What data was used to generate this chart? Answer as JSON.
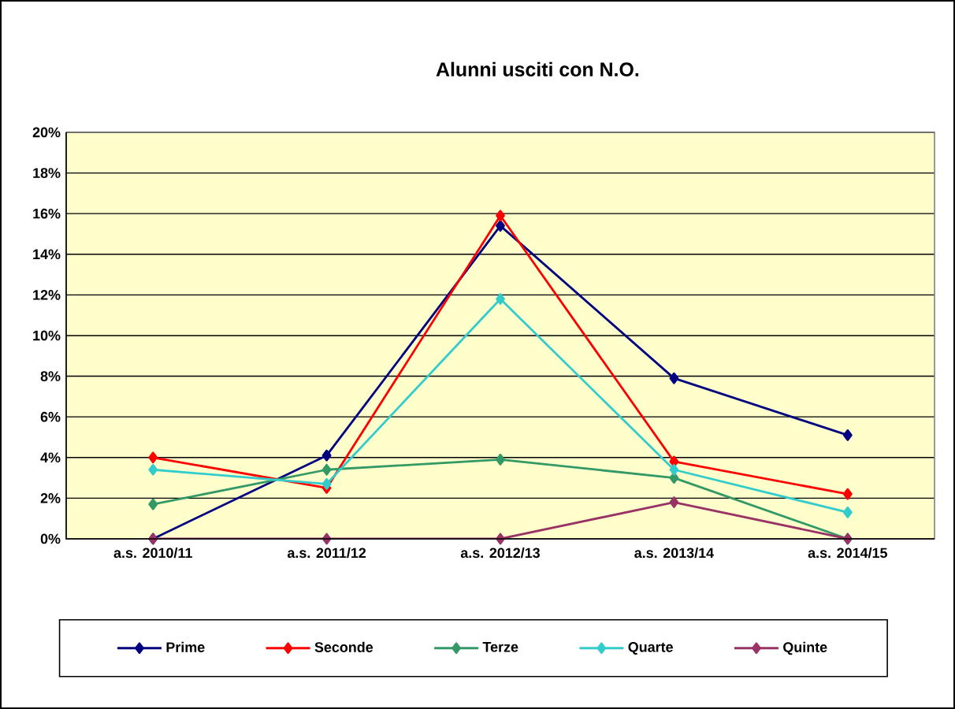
{
  "chart_data": {
    "type": "line",
    "title": "Alunni usciti con N.O.",
    "categories": [
      "a.s. 2010/11",
      "a.s. 2011/12",
      "a.s. 2012/13",
      "a.s. 2013/14",
      "a.s. 2014/15"
    ],
    "series": [
      {
        "name": "Prime",
        "color": "#000080",
        "values": [
          0,
          4.1,
          15.4,
          7.9,
          5.1
        ]
      },
      {
        "name": "Seconde",
        "color": "#ff0000",
        "values": [
          4.0,
          2.5,
          15.9,
          3.8,
          2.2
        ]
      },
      {
        "name": "Terze",
        "color": "#339966",
        "values": [
          1.7,
          3.4,
          3.9,
          3.0,
          0
        ]
      },
      {
        "name": "Quarte",
        "color": "#33cccc",
        "values": [
          3.4,
          2.7,
          11.8,
          3.4,
          1.3
        ]
      },
      {
        "name": "Quinte",
        "color": "#993366",
        "values": [
          0,
          0,
          0,
          1.8,
          0
        ]
      }
    ],
    "ylim": [
      0,
      20
    ],
    "yticks": [
      {
        "value": 0,
        "label": "0%"
      },
      {
        "value": 2,
        "label": "2%"
      },
      {
        "value": 4,
        "label": "4%"
      },
      {
        "value": 6,
        "label": "6%"
      },
      {
        "value": 8,
        "label": "8%"
      },
      {
        "value": 10,
        "label": "10%"
      },
      {
        "value": 12,
        "label": "12%"
      },
      {
        "value": 14,
        "label": "14%"
      },
      {
        "value": 16,
        "label": "16%"
      },
      {
        "value": 18,
        "label": "18%"
      },
      {
        "value": 20,
        "label": "20%"
      }
    ],
    "grid": "y",
    "legend": "bottom",
    "marker": "diamond",
    "line_style": "solid"
  }
}
